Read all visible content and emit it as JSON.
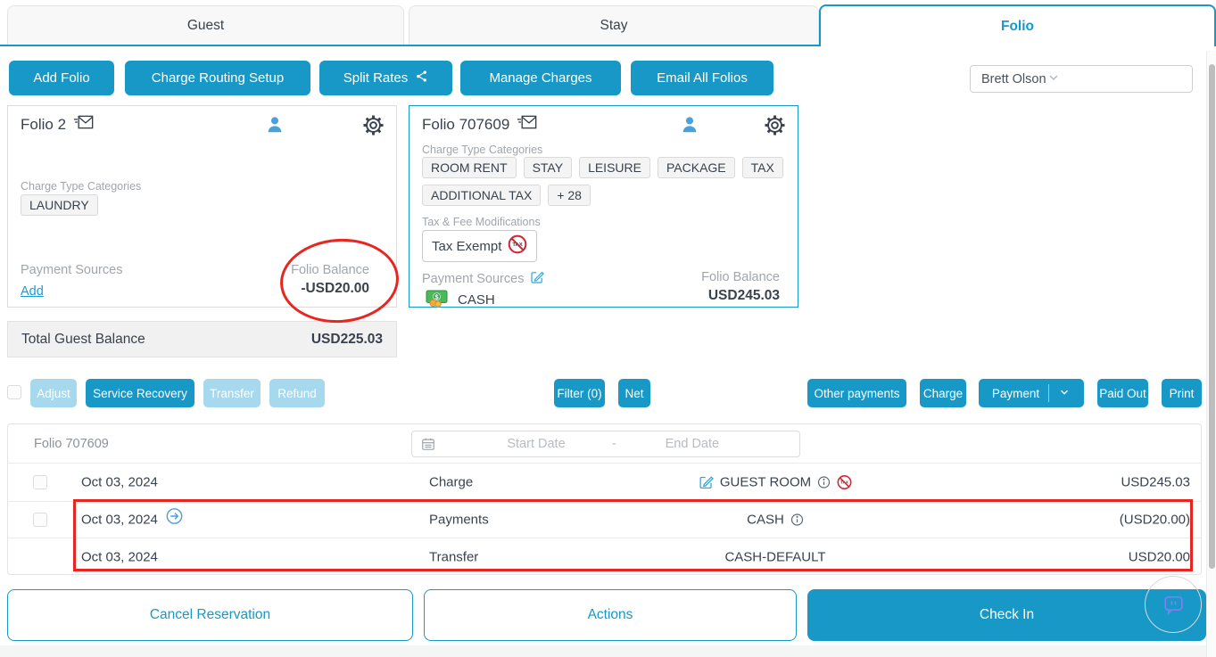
{
  "colors": {
    "primary": "#1798c7",
    "disabled_button": "#a6d8ee",
    "annotation_red": "#e6261f",
    "link_blue": "#189bd5"
  },
  "tabs": [
    {
      "label": "Guest",
      "active": false
    },
    {
      "label": "Stay",
      "active": false
    },
    {
      "label": "Folio",
      "active": true
    }
  ],
  "toolbar": {
    "add_folio": "Add Folio",
    "charge_routing_setup": "Charge Routing Setup",
    "split_rates": "Split Rates",
    "manage_charges": "Manage Charges",
    "email_all_folios": "Email All Folios",
    "guest_selector_value": "Brett Olson"
  },
  "folio_cards": [
    {
      "title": "Folio 2",
      "charge_type_categories_label": "Charge Type Categories",
      "categories": [
        "LAUNDRY"
      ],
      "payment_sources_label": "Payment Sources",
      "add_payment_link": "Add",
      "folio_balance_label": "Folio Balance",
      "folio_balance_value": "-USD20.00"
    },
    {
      "title": "Folio 707609",
      "charge_type_categories_label": "Charge Type Categories",
      "categories": [
        "ROOM RENT",
        "STAY",
        "LEISURE",
        "PACKAGE",
        "TAX",
        "ADDITIONAL TAX",
        "+ 28"
      ],
      "tax_fee_modifications_label": "Tax & Fee Modifications",
      "tax_exempt_label": "Tax Exempt",
      "payment_sources_label": "Payment Sources",
      "payment_source_name": "CASH",
      "folio_balance_label": "Folio Balance",
      "folio_balance_value": "USD245.03"
    }
  ],
  "total_guest_balance": {
    "label": "Total Guest Balance",
    "value": "USD225.03"
  },
  "transaction_toolbar": {
    "adjust": "Adjust",
    "service_recovery": "Service Recovery",
    "transfer": "Transfer",
    "refund": "Refund",
    "filter": "Filter (0)",
    "net": "Net",
    "other_payments": "Other payments",
    "charge": "Charge",
    "payment": "Payment",
    "paid_out": "Paid Out",
    "print": "Print"
  },
  "transactions": {
    "folio_label": "Folio 707609",
    "date_filter": {
      "start_placeholder": "Start Date",
      "separator": "-",
      "end_placeholder": "End Date"
    },
    "rows": [
      {
        "date": "Oct 03, 2024",
        "type": "Charge",
        "description": "GUEST ROOM",
        "amount": "USD245.03"
      },
      {
        "date": "Oct 03, 2024",
        "type": "Payments",
        "description": "CASH",
        "amount": "(USD20.00)"
      },
      {
        "date": "Oct 03, 2024",
        "type": "Transfer",
        "description": "CASH-DEFAULT",
        "amount": "USD20.00"
      }
    ]
  },
  "footer": {
    "cancel_reservation": "Cancel Reservation",
    "actions": "Actions",
    "check_in": "Check In"
  },
  "icons": {
    "envelope-icon": "email folio",
    "person-icon": "guest profile",
    "gear-icon": "folio settings",
    "share-icon": "split rates",
    "edit-icon": "edit payment sources",
    "cash-icon": "cash payment",
    "tax-exempt-icon": "no tax",
    "info-icon": "details",
    "circle-arrow-icon": "drill into payment",
    "calendar-icon": "date range",
    "chevron-down-icon": "open dropdown",
    "chat-bubble-icon": "feedback widget"
  }
}
